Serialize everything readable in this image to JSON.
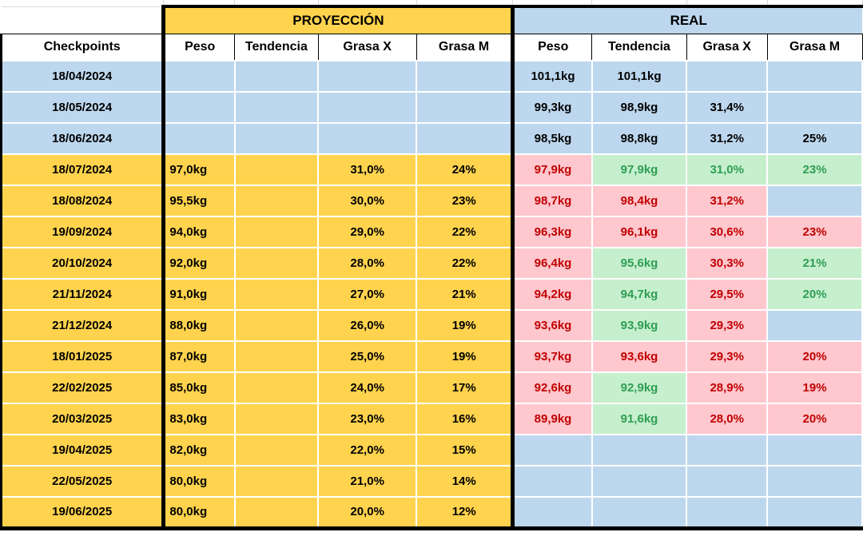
{
  "colors": {
    "yellow": "#FFD34D",
    "blue": "#BDD7EE",
    "pink_bg": "#FFC7CE",
    "pink_text": "#C00000",
    "green_bg": "#C6EFCE",
    "green_text": "#2E9E53",
    "border": "#000000"
  },
  "table": {
    "section_headers": {
      "proyeccion": "PROYECCIÓN",
      "real": "REAL"
    },
    "column_headers": {
      "checkpoints": "Checkpoints",
      "proj": [
        "Peso",
        "Tendencia",
        "Grasa X",
        "Grasa M"
      ],
      "real": [
        "Peso",
        "Tendencia",
        "Grasa X",
        "Grasa M"
      ]
    },
    "rows": [
      {
        "date": "18/04/2024",
        "date_s": "blue",
        "proj": [
          {
            "v": "",
            "s": "blue"
          },
          {
            "v": "",
            "s": "blue"
          },
          {
            "v": "",
            "s": "blue"
          },
          {
            "v": "",
            "s": "blue"
          }
        ],
        "real": [
          {
            "v": "101,1kg",
            "s": "blue"
          },
          {
            "v": "101,1kg",
            "s": "blue"
          },
          {
            "v": "",
            "s": "blue"
          },
          {
            "v": "",
            "s": "blue"
          }
        ]
      },
      {
        "date": "18/05/2024",
        "date_s": "blue",
        "proj": [
          {
            "v": "",
            "s": "blue"
          },
          {
            "v": "",
            "s": "blue"
          },
          {
            "v": "",
            "s": "blue"
          },
          {
            "v": "",
            "s": "blue"
          }
        ],
        "real": [
          {
            "v": "99,3kg",
            "s": "blue"
          },
          {
            "v": "98,9kg",
            "s": "blue"
          },
          {
            "v": "31,4%",
            "s": "blue"
          },
          {
            "v": "",
            "s": "blue"
          }
        ]
      },
      {
        "date": "18/06/2024",
        "date_s": "blue",
        "proj": [
          {
            "v": "",
            "s": "blue"
          },
          {
            "v": "",
            "s": "blue"
          },
          {
            "v": "",
            "s": "blue"
          },
          {
            "v": "",
            "s": "blue"
          }
        ],
        "real": [
          {
            "v": "98,5kg",
            "s": "blue"
          },
          {
            "v": "98,8kg",
            "s": "blue"
          },
          {
            "v": "31,2%",
            "s": "blue"
          },
          {
            "v": "25%",
            "s": "blue"
          }
        ]
      },
      {
        "date": "18/07/2024",
        "date_s": "yellow",
        "proj": [
          {
            "v": "97,0kg",
            "s": "yellow"
          },
          {
            "v": "",
            "s": "yellow"
          },
          {
            "v": "31,0%",
            "s": "yellow"
          },
          {
            "v": "24%",
            "s": "yellow"
          }
        ],
        "real": [
          {
            "v": "97,9kg",
            "s": "pink"
          },
          {
            "v": "97,9kg",
            "s": "green"
          },
          {
            "v": "31,0%",
            "s": "green"
          },
          {
            "v": "23%",
            "s": "green"
          }
        ]
      },
      {
        "date": "18/08/2024",
        "date_s": "yellow",
        "proj": [
          {
            "v": "95,5kg",
            "s": "yellow"
          },
          {
            "v": "",
            "s": "yellow"
          },
          {
            "v": "30,0%",
            "s": "yellow"
          },
          {
            "v": "23%",
            "s": "yellow"
          }
        ],
        "real": [
          {
            "v": "98,7kg",
            "s": "pink"
          },
          {
            "v": "98,4kg",
            "s": "pink"
          },
          {
            "v": "31,2%",
            "s": "pink"
          },
          {
            "v": "",
            "s": "blue"
          }
        ]
      },
      {
        "date": "19/09/2024",
        "date_s": "yellow",
        "proj": [
          {
            "v": "94,0kg",
            "s": "yellow"
          },
          {
            "v": "",
            "s": "yellow"
          },
          {
            "v": "29,0%",
            "s": "yellow"
          },
          {
            "v": "22%",
            "s": "yellow"
          }
        ],
        "real": [
          {
            "v": "96,3kg",
            "s": "pink"
          },
          {
            "v": "96,1kg",
            "s": "pink"
          },
          {
            "v": "30,6%",
            "s": "pink"
          },
          {
            "v": "23%",
            "s": "pink"
          }
        ]
      },
      {
        "date": "20/10/2024",
        "date_s": "yellow",
        "proj": [
          {
            "v": "92,0kg",
            "s": "yellow"
          },
          {
            "v": "",
            "s": "yellow"
          },
          {
            "v": "28,0%",
            "s": "yellow"
          },
          {
            "v": "22%",
            "s": "yellow"
          }
        ],
        "real": [
          {
            "v": "96,4kg",
            "s": "pink"
          },
          {
            "v": "95,6kg",
            "s": "green"
          },
          {
            "v": "30,3%",
            "s": "pink"
          },
          {
            "v": "21%",
            "s": "green"
          }
        ]
      },
      {
        "date": "21/11/2024",
        "date_s": "yellow",
        "proj": [
          {
            "v": "91,0kg",
            "s": "yellow"
          },
          {
            "v": "",
            "s": "yellow"
          },
          {
            "v": "27,0%",
            "s": "yellow"
          },
          {
            "v": "21%",
            "s": "yellow"
          }
        ],
        "real": [
          {
            "v": "94,2kg",
            "s": "pink"
          },
          {
            "v": "94,7kg",
            "s": "green"
          },
          {
            "v": "29,5%",
            "s": "pink"
          },
          {
            "v": "20%",
            "s": "green"
          }
        ]
      },
      {
        "date": "21/12/2024",
        "date_s": "yellow",
        "proj": [
          {
            "v": "88,0kg",
            "s": "yellow"
          },
          {
            "v": "",
            "s": "yellow"
          },
          {
            "v": "26,0%",
            "s": "yellow"
          },
          {
            "v": "19%",
            "s": "yellow"
          }
        ],
        "real": [
          {
            "v": "93,6kg",
            "s": "pink"
          },
          {
            "v": "93,9kg",
            "s": "green"
          },
          {
            "v": "29,3%",
            "s": "pink"
          },
          {
            "v": "",
            "s": "blue"
          }
        ]
      },
      {
        "date": "18/01/2025",
        "date_s": "yellow",
        "proj": [
          {
            "v": "87,0kg",
            "s": "yellow"
          },
          {
            "v": "",
            "s": "yellow"
          },
          {
            "v": "25,0%",
            "s": "yellow"
          },
          {
            "v": "19%",
            "s": "yellow"
          }
        ],
        "real": [
          {
            "v": "93,7kg",
            "s": "pink"
          },
          {
            "v": "93,6kg",
            "s": "pink"
          },
          {
            "v": "29,3%",
            "s": "pink"
          },
          {
            "v": "20%",
            "s": "pink"
          }
        ]
      },
      {
        "date": "22/02/2025",
        "date_s": "yellow",
        "proj": [
          {
            "v": "85,0kg",
            "s": "yellow"
          },
          {
            "v": "",
            "s": "yellow"
          },
          {
            "v": "24,0%",
            "s": "yellow"
          },
          {
            "v": "17%",
            "s": "yellow"
          }
        ],
        "real": [
          {
            "v": "92,6kg",
            "s": "pink"
          },
          {
            "v": "92,9kg",
            "s": "green"
          },
          {
            "v": "28,9%",
            "s": "pink"
          },
          {
            "v": "19%",
            "s": "pink"
          }
        ]
      },
      {
        "date": "20/03/2025",
        "date_s": "yellow",
        "proj": [
          {
            "v": "83,0kg",
            "s": "yellow"
          },
          {
            "v": "",
            "s": "yellow"
          },
          {
            "v": "23,0%",
            "s": "yellow"
          },
          {
            "v": "16%",
            "s": "yellow"
          }
        ],
        "real": [
          {
            "v": "89,9kg",
            "s": "pink"
          },
          {
            "v": "91,6kg",
            "s": "green"
          },
          {
            "v": "28,0%",
            "s": "pink"
          },
          {
            "v": "20%",
            "s": "pink"
          }
        ]
      },
      {
        "date": "19/04/2025",
        "date_s": "yellow",
        "proj": [
          {
            "v": "82,0kg",
            "s": "yellow"
          },
          {
            "v": "",
            "s": "yellow"
          },
          {
            "v": "22,0%",
            "s": "yellow"
          },
          {
            "v": "15%",
            "s": "yellow"
          }
        ],
        "real": [
          {
            "v": "",
            "s": "blue"
          },
          {
            "v": "",
            "s": "blue"
          },
          {
            "v": "",
            "s": "blue"
          },
          {
            "v": "",
            "s": "blue"
          }
        ]
      },
      {
        "date": "22/05/2025",
        "date_s": "yellow",
        "proj": [
          {
            "v": "80,0kg",
            "s": "yellow"
          },
          {
            "v": "",
            "s": "yellow"
          },
          {
            "v": "21,0%",
            "s": "yellow"
          },
          {
            "v": "14%",
            "s": "yellow"
          }
        ],
        "real": [
          {
            "v": "",
            "s": "blue"
          },
          {
            "v": "",
            "s": "blue"
          },
          {
            "v": "",
            "s": "blue"
          },
          {
            "v": "",
            "s": "blue"
          }
        ]
      },
      {
        "date": "19/06/2025",
        "date_s": "yellow",
        "proj": [
          {
            "v": "80,0kg",
            "s": "yellow"
          },
          {
            "v": "",
            "s": "yellow"
          },
          {
            "v": "20,0%",
            "s": "yellow"
          },
          {
            "v": "12%",
            "s": "yellow"
          }
        ],
        "real": [
          {
            "v": "",
            "s": "blue"
          },
          {
            "v": "",
            "s": "blue"
          },
          {
            "v": "",
            "s": "blue"
          },
          {
            "v": "",
            "s": "blue"
          }
        ]
      }
    ]
  }
}
